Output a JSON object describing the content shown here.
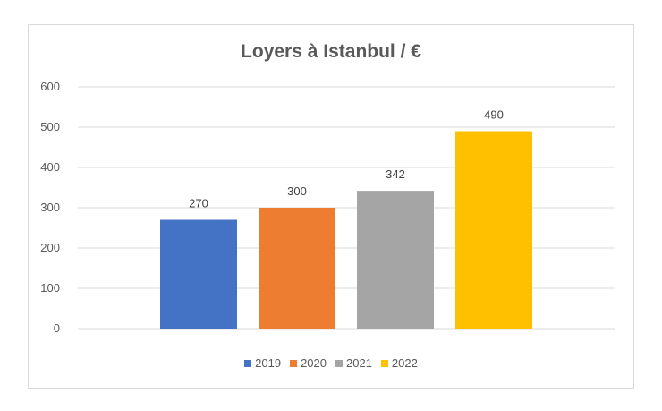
{
  "chart_data": {
    "type": "bar",
    "title": "Loyers à Istanbul / €",
    "xlabel": "",
    "ylabel": "",
    "ylim": [
      0,
      600
    ],
    "yticks": [
      0,
      100,
      200,
      300,
      400,
      500,
      600
    ],
    "grid": true,
    "legend_position": "bottom",
    "series": [
      {
        "name": "2019",
        "value": 270,
        "color": "#4472c4"
      },
      {
        "name": "2020",
        "value": 300,
        "color": "#ed7d31"
      },
      {
        "name": "2021",
        "value": 342,
        "color": "#a5a5a5"
      },
      {
        "name": "2022",
        "value": 490,
        "color": "#ffc000"
      }
    ]
  }
}
